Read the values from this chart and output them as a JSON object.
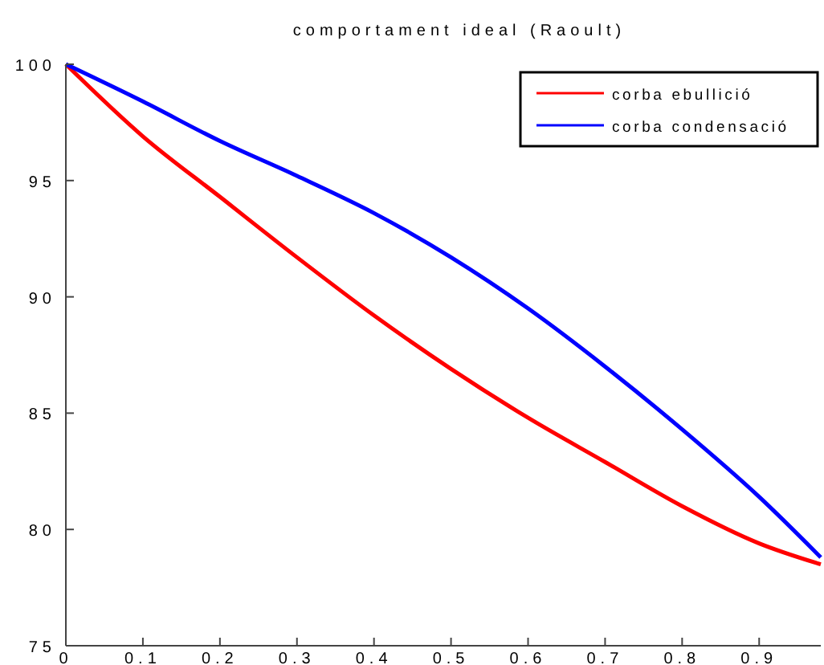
{
  "chart_data": {
    "type": "line",
    "title": "comportament ideal (Raoult)",
    "xlim": [
      0,
      0.98
    ],
    "xticks": [
      0,
      0.1,
      0.2,
      0.3,
      0.4,
      0.5,
      0.6,
      0.7,
      0.8,
      0.9
    ],
    "ylim": [
      75,
      100
    ],
    "yticks": [
      75,
      80,
      85,
      90,
      95,
      100
    ],
    "grid": false,
    "legend": "top right",
    "x": [
      0,
      0.1,
      0.2,
      0.3,
      0.4,
      0.5,
      0.6,
      0.7,
      0.8,
      0.9,
      0.98
    ],
    "series": [
      {
        "name": "corba ebullició",
        "color": "#ff0000",
        "values": [
          100,
          96.9,
          94.3,
          91.7,
          89.2,
          86.9,
          84.8,
          82.9,
          81.0,
          79.4,
          78.5
        ]
      },
      {
        "name": "corba condensació",
        "color": "#0000ff",
        "values": [
          100,
          98.4,
          96.7,
          95.2,
          93.6,
          91.7,
          89.5,
          87.0,
          84.3,
          81.4,
          78.8
        ]
      }
    ]
  }
}
